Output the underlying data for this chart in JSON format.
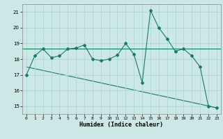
{
  "xlabel": "Humidex (Indice chaleur)",
  "ylabel": "",
  "background_color": "#cce8e4",
  "grid_color": "#b0d8d2",
  "line_color": "#1a7a6a",
  "xlim": [
    -0.5,
    23.5
  ],
  "ylim": [
    14.5,
    21.5
  ],
  "yticks": [
    15,
    16,
    17,
    18,
    19,
    20,
    21
  ],
  "xticks": [
    0,
    1,
    2,
    3,
    4,
    5,
    6,
    7,
    8,
    9,
    10,
    11,
    12,
    13,
    14,
    15,
    16,
    17,
    18,
    19,
    20,
    21,
    22,
    23
  ],
  "series1_x": [
    0,
    1,
    2,
    3,
    4,
    5,
    6,
    7,
    8,
    9,
    10,
    11,
    12,
    13,
    14,
    15,
    16,
    17,
    18,
    19,
    20,
    21,
    22,
    23
  ],
  "series1_y": [
    17.0,
    18.2,
    18.65,
    18.1,
    18.2,
    18.65,
    18.7,
    18.9,
    18.0,
    17.9,
    18.0,
    18.25,
    19.0,
    18.3,
    16.5,
    21.1,
    20.0,
    19.3,
    18.5,
    18.65,
    18.2,
    17.5,
    15.0,
    14.9
  ],
  "series2_y": 18.65,
  "series3_start_x": 0,
  "series3_start_y": 17.5,
  "series3_end_x": 23,
  "series3_end_y": 14.9
}
